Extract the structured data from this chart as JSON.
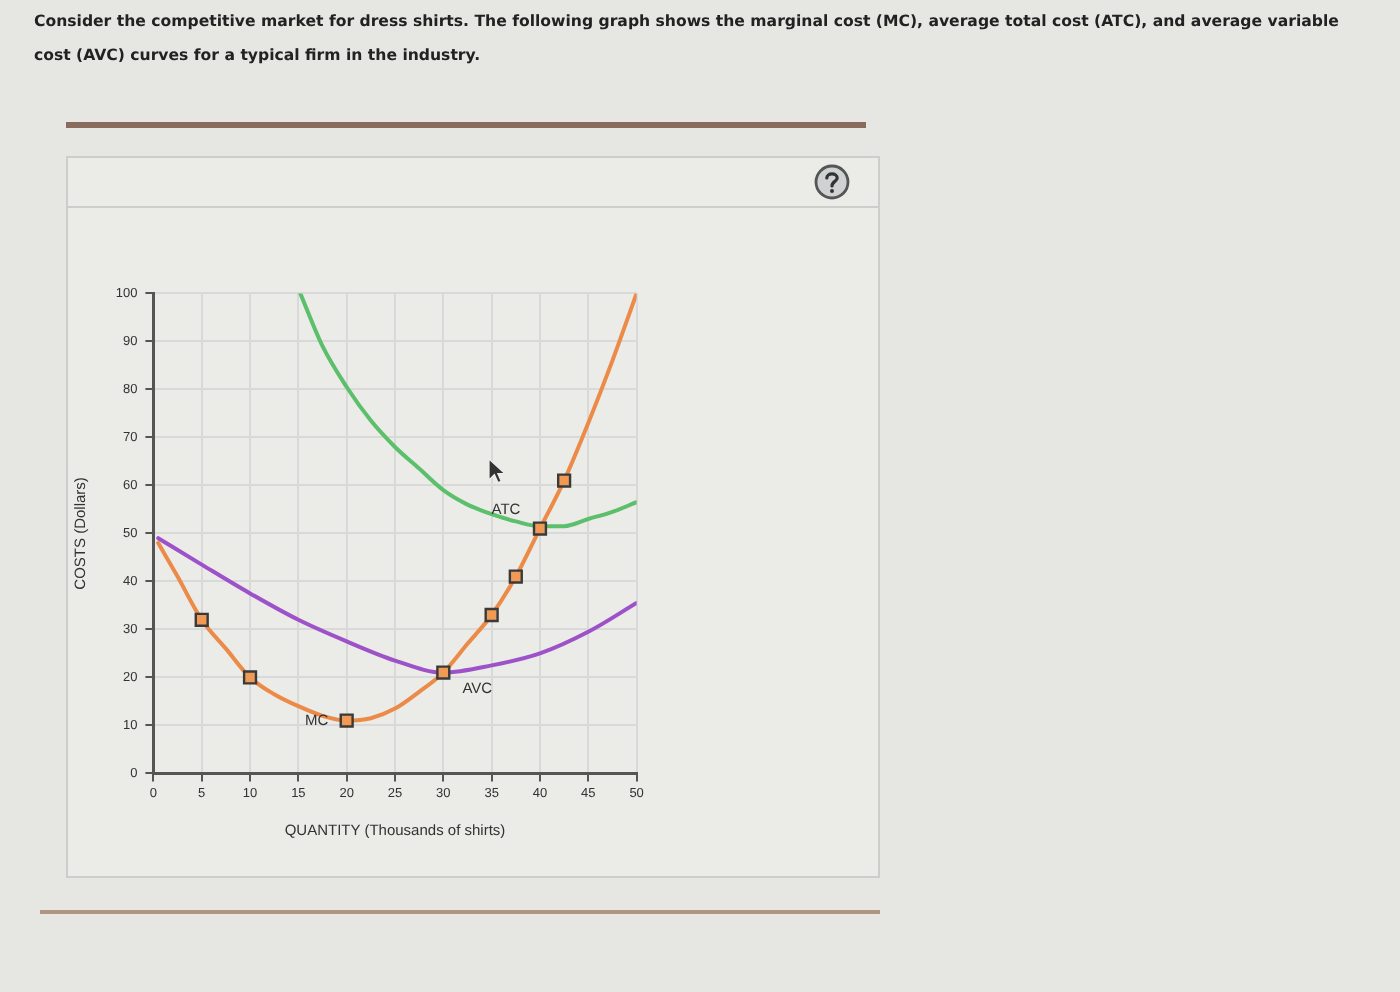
{
  "chart_data": {
    "type": "line",
    "title": "Consider the competitive market for dress shirts. The following graph shows the marginal cost (MC), average total cost (ATC), and average variable cost (AVC) curves for a typical firm in the industry.",
    "xlabel": "QUANTITY (Thousands of shirts)",
    "ylabel": "COSTS (Dollars)",
    "series": [
      {
        "name": "MC",
        "color": "#ec8a48",
        "x": [
          0.5,
          2.5,
          5,
          7.5,
          10,
          12.5,
          15,
          17.5,
          20,
          22.5,
          25,
          27.5,
          30,
          32.5,
          35,
          37.5,
          40,
          42.5,
          45,
          47.5,
          50
        ],
        "values": [
          48,
          41,
          32,
          26,
          20,
          16.5,
          14,
          12,
          11,
          11.5,
          13.5,
          17,
          21,
          27,
          33,
          41,
          51,
          61,
          73,
          86,
          100
        ]
      },
      {
        "name": "ATC",
        "color": "#5cbf6c",
        "x": [
          15.2,
          17.5,
          20,
          22.5,
          25,
          27.5,
          30,
          32.5,
          35,
          37.5,
          40,
          42.5,
          45,
          47.5,
          50
        ],
        "values": [
          100,
          89,
          80.5,
          73.5,
          68,
          63.5,
          59,
          56,
          54,
          52.5,
          51.5,
          51.5,
          53,
          54.5,
          56.5
        ]
      },
      {
        "name": "AVC",
        "color": "#9d52c9",
        "x": [
          0.5,
          5,
          10,
          15,
          20,
          25,
          30,
          35,
          40,
          45,
          50
        ],
        "values": [
          49,
          43.5,
          37.5,
          32,
          27.5,
          23.5,
          21,
          22.5,
          25,
          29.5,
          35.5
        ]
      },
      {
        "type": "scatter",
        "color": "#f09a55",
        "marker": "square",
        "x": [
          5,
          10,
          20,
          30,
          35,
          37.5,
          40,
          42.5
        ],
        "values": [
          32,
          20,
          11,
          21,
          33,
          41,
          51,
          61
        ]
      }
    ],
    "xlim": [
      0,
      50
    ],
    "xticks": [
      0,
      5,
      10,
      15,
      20,
      25,
      30,
      35,
      40,
      45,
      50
    ],
    "ylim": [
      0,
      100
    ],
    "yticks": [
      0,
      10,
      20,
      30,
      40,
      50,
      60,
      70,
      80,
      90,
      100
    ],
    "grid": true,
    "legend": false,
    "marker": "none",
    "line_style": "solid"
  }
}
